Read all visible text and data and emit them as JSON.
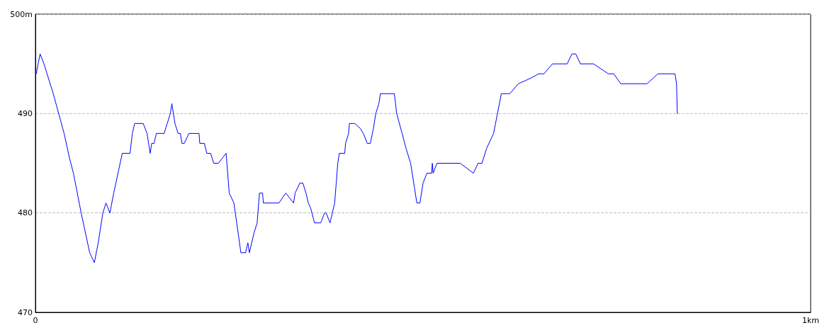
{
  "chart_data": {
    "type": "line",
    "x": [
      0,
      0.001,
      0.006,
      0.011,
      0.023,
      0.037,
      0.044,
      0.049,
      0.059,
      0.07,
      0.076,
      0.081,
      0.087,
      0.091,
      0.096,
      0.101,
      0.112,
      0.122,
      0.125,
      0.128,
      0.139,
      0.144,
      0.148,
      0.15,
      0.153,
      0.156,
      0.166,
      0.17,
      0.174,
      0.176,
      0.18,
      0.184,
      0.187,
      0.189,
      0.192,
      0.198,
      0.211,
      0.212,
      0.218,
      0.221,
      0.226,
      0.23,
      0.236,
      0.246,
      0.25,
      0.256,
      0.262,
      0.265,
      0.271,
      0.274,
      0.276,
      0.282,
      0.286,
      0.289,
      0.293,
      0.294,
      0.314,
      0.323,
      0.333,
      0.335,
      0.341,
      0.345,
      0.349,
      0.352,
      0.355,
      0.36,
      0.368,
      0.373,
      0.375,
      0.38,
      0.386,
      0.388,
      0.39,
      0.392,
      0.399,
      0.4,
      0.404,
      0.405,
      0.412,
      0.419,
      0.423,
      0.428,
      0.432,
      0.436,
      0.439,
      0.443,
      0.445,
      0.463,
      0.466,
      0.473,
      0.478,
      0.484,
      0.489,
      0.492,
      0.496,
      0.5,
      0.505,
      0.511,
      0.512,
      0.513,
      0.518,
      0.548,
      0.565,
      0.571,
      0.576,
      0.582,
      0.591,
      0.596,
      0.601,
      0.612,
      0.623,
      0.64,
      0.649,
      0.656,
      0.667,
      0.686,
      0.692,
      0.697,
      0.703,
      0.72,
      0.739,
      0.746,
      0.755,
      0.789,
      0.803,
      0.825,
      0.827,
      0.828
    ],
    "series": [
      {
        "color": "#0000ff",
        "values": [
          494.5,
          494,
          496,
          495,
          492,
          488,
          485.5,
          484,
          480,
          476,
          475,
          477,
          480,
          481,
          480,
          482,
          486,
          486,
          488,
          489,
          489,
          488,
          486,
          487,
          487,
          488,
          488,
          489,
          490,
          491,
          489,
          488,
          488,
          487,
          487,
          488,
          488,
          487,
          487,
          486,
          486,
          485,
          485,
          486,
          482,
          481,
          477.7,
          476,
          476,
          477,
          476,
          478,
          479,
          482,
          482,
          481,
          481,
          482,
          481,
          482,
          483,
          483,
          482,
          481,
          480.5,
          479,
          479,
          480,
          480,
          479,
          481,
          483,
          485,
          486,
          486,
          487,
          488,
          489,
          489,
          488.5,
          488,
          487,
          487,
          488.5,
          490,
          491,
          492,
          492,
          490,
          488,
          486.5,
          485,
          482.5,
          481,
          481,
          483,
          484,
          484,
          485,
          484,
          485,
          485,
          484,
          485,
          485,
          486.5,
          488,
          490,
          492,
          492,
          493,
          493.6,
          494,
          494,
          495,
          495,
          496,
          496,
          495,
          495,
          494,
          494,
          493,
          493,
          494,
          494,
          493,
          490
        ]
      }
    ],
    "xlim": [
      0,
      1
    ],
    "xticks": [
      0,
      {
        "value": 1,
        "label": "1km"
      }
    ],
    "ylim": [
      470,
      500
    ],
    "yticks": [
      {
        "value": 470,
        "label": "470"
      },
      {
        "value": 480,
        "label": "480"
      },
      {
        "value": 490,
        "label": "490"
      },
      {
        "value": 500,
        "label": "500m"
      }
    ],
    "grid": "y",
    "marker": "none",
    "line_style": "solid"
  }
}
